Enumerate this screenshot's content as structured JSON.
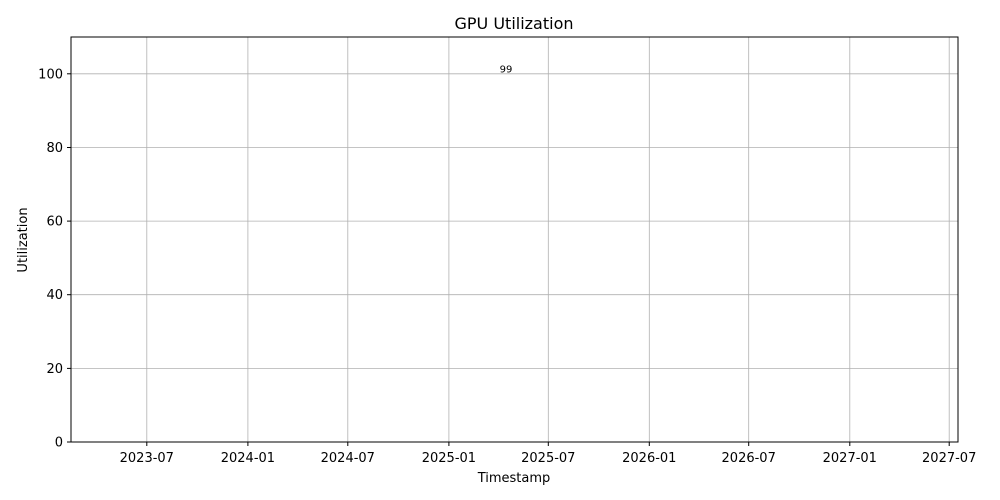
{
  "chart_data": {
    "type": "line",
    "title": "GPU Utilization",
    "xlabel": "Timestamp",
    "ylabel": "Utilization",
    "x_scale": "date",
    "xlim": [
      "2023-02-13",
      "2027-07-17"
    ],
    "ylim": [
      0,
      110
    ],
    "x_ticks": [
      "2023-07",
      "2024-01",
      "2024-07",
      "2025-01",
      "2025-07",
      "2026-01",
      "2026-07",
      "2027-01",
      "2027-07"
    ],
    "x_tick_dates": [
      "2023-07-01",
      "2024-01-01",
      "2024-07-01",
      "2025-01-01",
      "2025-07-01",
      "2026-01-01",
      "2026-07-01",
      "2027-01-01",
      "2027-07-01"
    ],
    "y_ticks": [
      0,
      20,
      40,
      60,
      80,
      100
    ],
    "grid": true,
    "series": [
      {
        "points": [
          {
            "x": "2025-04-15",
            "y": 99,
            "label": "99"
          }
        ]
      }
    ]
  }
}
